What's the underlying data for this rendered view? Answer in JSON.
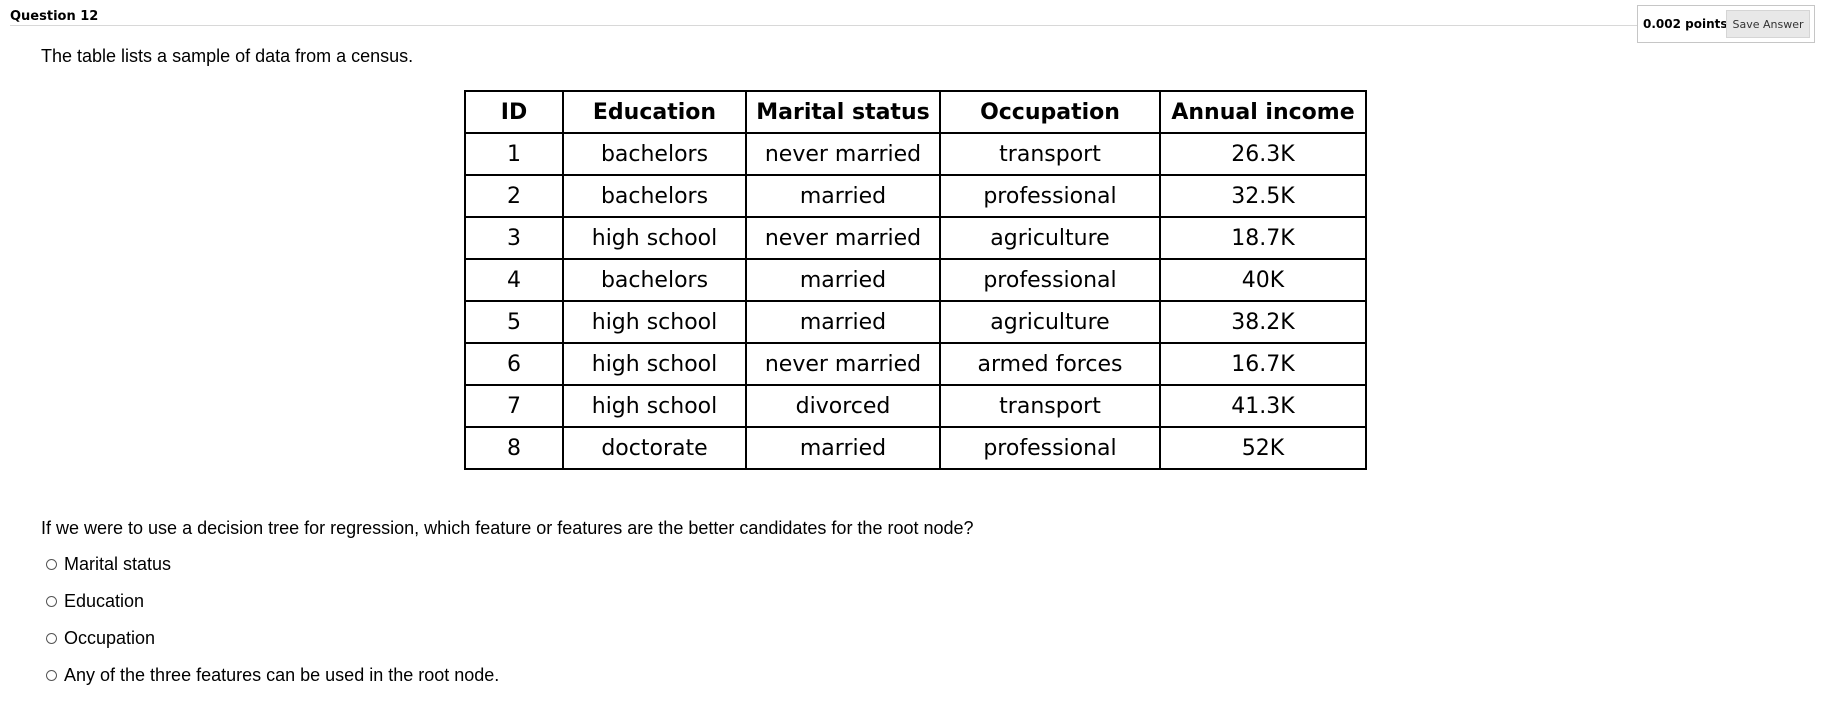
{
  "question": {
    "title": "Question 12",
    "points": "0.002 points",
    "save_label": "Save Answer",
    "intro": "The table lists a sample of data from a census.",
    "prompt": "If we were to use a decision tree for regression, which feature or features are the better candidates for the root node?"
  },
  "table": {
    "headers": [
      "ID",
      "Education",
      "Marital status",
      "Occupation",
      "Annual income"
    ],
    "rows": [
      [
        "1",
        "bachelors",
        "never married",
        "transport",
        "26.3K"
      ],
      [
        "2",
        "bachelors",
        "married",
        "professional",
        "32.5K"
      ],
      [
        "3",
        "high school",
        "never married",
        "agriculture",
        "18.7K"
      ],
      [
        "4",
        "bachelors",
        "married",
        "professional",
        "40K"
      ],
      [
        "5",
        "high school",
        "married",
        "agriculture",
        "38.2K"
      ],
      [
        "6",
        "high school",
        "never married",
        "armed forces",
        "16.7K"
      ],
      [
        "7",
        "high school",
        "divorced",
        "transport",
        "41.3K"
      ],
      [
        "8",
        "doctorate",
        "married",
        "professional",
        "52K"
      ]
    ]
  },
  "options": [
    {
      "label": "Marital status"
    },
    {
      "label": "Education"
    },
    {
      "label": "Occupation"
    },
    {
      "label": "Any of the three features can be used in the root node."
    }
  ]
}
